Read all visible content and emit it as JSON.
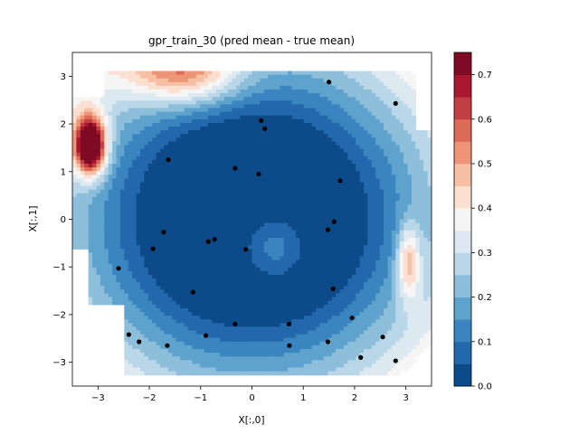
{
  "chart_data": {
    "type": "contourf",
    "title": "gpr_train_30 (pred mean - true mean)",
    "xlabel": "X[:,0]",
    "ylabel": "X[:,1]",
    "xlim": [
      -3.5,
      3.5
    ],
    "ylim": [
      -3.5,
      3.5
    ],
    "xticks": [
      -3,
      -2,
      -1,
      0,
      1,
      2,
      3
    ],
    "yticks": [
      -3,
      -2,
      -1,
      0,
      1,
      2,
      3
    ],
    "colorbar": {
      "levels": [
        0.0,
        0.05,
        0.1,
        0.15,
        0.2,
        0.25,
        0.3,
        0.35,
        0.4,
        0.45,
        0.5,
        0.55,
        0.6,
        0.65,
        0.7,
        0.75
      ],
      "ticks": [
        0.0,
        0.1,
        0.2,
        0.3,
        0.4,
        0.5,
        0.6,
        0.7
      ],
      "colors": [
        "#0d4a8a",
        "#2368ad",
        "#3a85bf",
        "#5ea3cd",
        "#8dbfdb",
        "#bad7e9",
        "#dde9f1",
        "#f5f5f5",
        "#fbdfd1",
        "#f7bfa3",
        "#ee9577",
        "#dc6a57",
        "#c13f43",
        "#a8172f",
        "#7f0a24"
      ]
    },
    "training_points": [
      {
        "x": 1.5,
        "y": 2.88
      },
      {
        "x": 2.8,
        "y": 2.43
      },
      {
        "x": 0.18,
        "y": 2.07
      },
      {
        "x": 0.25,
        "y": 1.9
      },
      {
        "x": -1.63,
        "y": 1.25
      },
      {
        "x": -0.33,
        "y": 1.07
      },
      {
        "x": 0.13,
        "y": 0.95
      },
      {
        "x": 1.72,
        "y": 0.81
      },
      {
        "x": 1.6,
        "y": -0.05
      },
      {
        "x": 1.48,
        "y": -0.22
      },
      {
        "x": -1.72,
        "y": -0.27
      },
      {
        "x": -0.73,
        "y": -0.42
      },
      {
        "x": -0.85,
        "y": -0.47
      },
      {
        "x": -1.93,
        "y": -0.62
      },
      {
        "x": -0.12,
        "y": -0.63
      },
      {
        "x": -2.6,
        "y": -1.03
      },
      {
        "x": 1.58,
        "y": -1.46
      },
      {
        "x": -1.15,
        "y": -1.53
      },
      {
        "x": 1.95,
        "y": -2.07
      },
      {
        "x": -0.33,
        "y": -2.2
      },
      {
        "x": 0.72,
        "y": -2.2
      },
      {
        "x": -2.4,
        "y": -2.42
      },
      {
        "x": -0.9,
        "y": -2.44
      },
      {
        "x": 2.55,
        "y": -2.47
      },
      {
        "x": -2.2,
        "y": -2.57
      },
      {
        "x": 1.48,
        "y": -2.57
      },
      {
        "x": -1.65,
        "y": -2.65
      },
      {
        "x": 0.73,
        "y": -2.65
      },
      {
        "x": 2.12,
        "y": -2.9
      },
      {
        "x": 2.8,
        "y": -2.97
      }
    ]
  }
}
